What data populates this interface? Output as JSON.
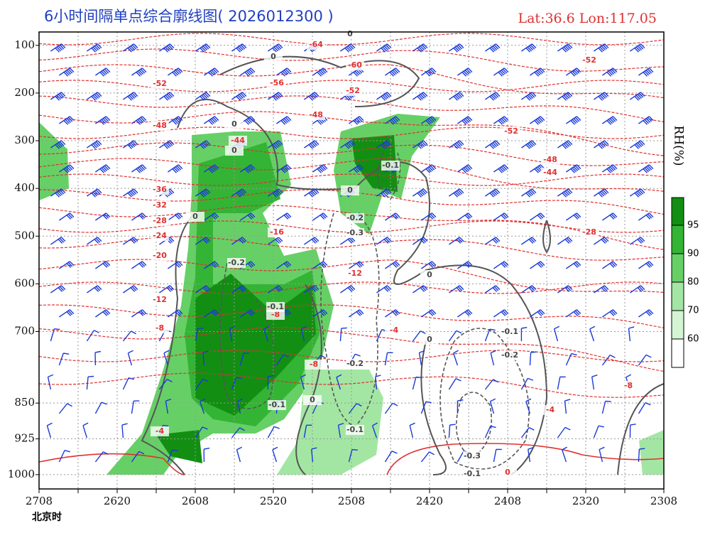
{
  "chart_data": {
    "type": "contour",
    "title": "6小时间隔单点综合廓线图( 2026012300 )",
    "subtitle": "Lat:36.6  Lon:117.05",
    "x_label": "北京时",
    "categories": [
      "2708",
      null,
      "2620",
      null,
      "2608",
      null,
      "2520",
      null,
      "2508",
      null,
      "2420",
      null,
      "2408",
      null,
      "2320",
      null,
      "2308"
    ],
    "ylim": [
      1030,
      72
    ],
    "yticks": [
      100,
      200,
      300,
      400,
      500,
      600,
      700,
      850,
      925,
      1000
    ],
    "grid": true,
    "temperature_color": "#e03030",
    "omega_color": "#555555",
    "temperature_labels": [
      -64,
      -60,
      -56,
      -52,
      -52,
      -52,
      -48,
      -52,
      -48,
      -44,
      -48,
      -44,
      -36,
      -32,
      -28,
      -24,
      -20,
      -16,
      -28,
      -12,
      -12,
      -8,
      -8,
      -4,
      -8,
      -8,
      -4,
      -4,
      0
    ],
    "omega_labels": [
      0,
      0,
      0,
      0,
      0,
      -0.1,
      0,
      -0.2,
      -0.3,
      -0.2,
      0,
      -0.1,
      -0.1,
      0,
      -0.2,
      -0.2,
      0,
      -0.1,
      -0.1,
      -0.3,
      -0.1
    ],
    "colorbar": {
      "label": "RH(%)",
      "ticks": [
        60,
        70,
        80,
        90,
        95
      ],
      "colors": [
        "#ffffff",
        "#d4f4d4",
        "#a3e6a3",
        "#66d066",
        "#34b434",
        "#128f12"
      ]
    }
  }
}
